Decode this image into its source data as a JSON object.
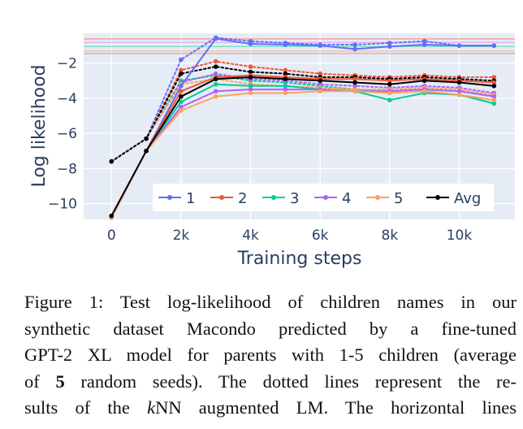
{
  "chart_data": {
    "type": "line",
    "xlabel": "Training steps",
    "ylabel": "Log likelihood",
    "xlim": [
      -800,
      11600
    ],
    "ylim": [
      -10.9,
      -0.3
    ],
    "xticks": [
      0,
      2000,
      4000,
      6000,
      8000,
      10000
    ],
    "xtick_labels": [
      "0",
      "2k",
      "4k",
      "6k",
      "8k",
      "10k"
    ],
    "yticks": [
      -2,
      -4,
      -6,
      -8,
      -10
    ],
    "ytick_labels": [
      "−2",
      "−4",
      "−6",
      "−8",
      "−10"
    ],
    "grid": true,
    "legend_position": "bottom-right",
    "x": [
      0,
      1000,
      2000,
      3000,
      4000,
      5000,
      6000,
      7000,
      8000,
      9000,
      10000,
      11000
    ],
    "horizontal_lines": [
      {
        "y": -0.62,
        "color": "#f4a3a0"
      },
      {
        "y": -0.82,
        "color": "#e5b3f0"
      },
      {
        "y": -1.05,
        "color": "#7de0c2"
      },
      {
        "y": -1.32,
        "color": "#f7c29c"
      },
      {
        "y": -1.45,
        "color": "#f2a9a2"
      }
    ],
    "series": [
      {
        "name": "1",
        "color": "#636efa",
        "values": [
          -10.8,
          -7.0,
          -3.3,
          -0.6,
          -0.9,
          -0.95,
          -1.0,
          -1.2,
          -1.05,
          -0.95,
          -1.0,
          -1.0
        ],
        "knn": [
          -7.6,
          -6.3,
          -1.8,
          -0.55,
          -0.75,
          -0.85,
          -0.95,
          -0.95,
          -0.85,
          -0.75,
          -1.0,
          -1.0
        ]
      },
      {
        "name": "2",
        "color": "#ef553b",
        "values": [
          -10.7,
          -7.0,
          -3.6,
          -2.8,
          -2.7,
          -2.8,
          -2.9,
          -2.9,
          -3.0,
          -2.9,
          -3.0,
          -3.1
        ],
        "knn": [
          -7.6,
          -6.3,
          -2.4,
          -1.9,
          -2.2,
          -2.4,
          -2.6,
          -2.7,
          -2.8,
          -2.7,
          -2.8,
          -2.8
        ]
      },
      {
        "name": "3",
        "color": "#00cc96",
        "values": [
          -10.8,
          -7.0,
          -4.2,
          -3.2,
          -3.3,
          -3.3,
          -3.5,
          -3.6,
          -4.1,
          -3.7,
          -3.8,
          -4.3
        ],
        "knn": [
          -7.6,
          -6.3,
          -3.0,
          -2.7,
          -3.0,
          -3.1,
          -3.3,
          -3.5,
          -3.6,
          -3.5,
          -3.6,
          -3.9
        ]
      },
      {
        "name": "4",
        "color": "#ab63fa",
        "values": [
          -10.8,
          -7.0,
          -4.5,
          -3.6,
          -3.5,
          -3.5,
          -3.5,
          -3.6,
          -3.6,
          -3.5,
          -3.6,
          -3.9
        ],
        "knn": [
          -7.6,
          -6.3,
          -3.1,
          -2.6,
          -2.9,
          -3.0,
          -3.2,
          -3.3,
          -3.4,
          -3.3,
          -3.4,
          -3.7
        ]
      },
      {
        "name": "5",
        "color": "#ffa15a",
        "values": [
          -10.8,
          -7.0,
          -4.7,
          -3.9,
          -3.7,
          -3.7,
          -3.6,
          -3.6,
          -3.7,
          -3.6,
          -3.8,
          -4.1
        ],
        "knn": [
          -7.6,
          -6.3,
          -3.2,
          -2.9,
          -3.2,
          -3.3,
          -3.4,
          -3.5,
          -3.5,
          -3.4,
          -3.5,
          -3.8
        ]
      },
      {
        "name": "Avg",
        "color": "#000000",
        "values": [
          -10.7,
          -7.0,
          -3.9,
          -2.9,
          -2.8,
          -2.9,
          -3.0,
          -3.1,
          -3.2,
          -3.0,
          -3.1,
          -3.3
        ],
        "knn": [
          -7.6,
          -6.3,
          -2.6,
          -2.2,
          -2.5,
          -2.6,
          -2.8,
          -2.8,
          -2.9,
          -2.8,
          -2.9,
          -3.0
        ]
      }
    ]
  },
  "caption": {
    "line1": "Figure 1: Test log-likelihood of children names in our",
    "line2": "synthetic dataset Macondo predicted by a fine-tuned",
    "line3": "GPT-2 XL model for parents with 1-5 children (average",
    "line4a": "of ",
    "line4b": "5",
    "line4c": " random seeds). The dotted lines represent the re-",
    "line5a": "sults of the ",
    "line5b": "k",
    "line5c": "NN augmented LM. The horizontal lines"
  }
}
